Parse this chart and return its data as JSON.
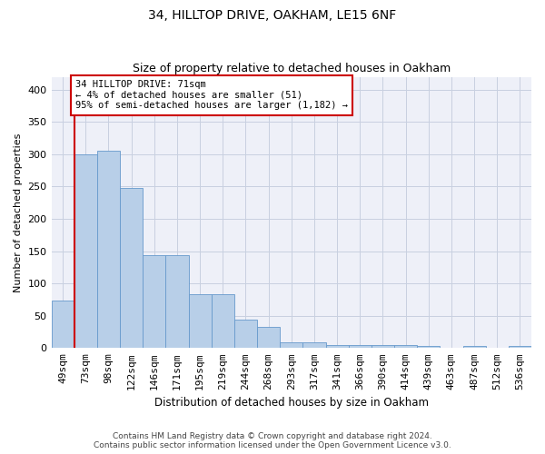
{
  "title1": "34, HILLTOP DRIVE, OAKHAM, LE15 6NF",
  "title2": "Size of property relative to detached houses in Oakham",
  "xlabel": "Distribution of detached houses by size in Oakham",
  "ylabel": "Number of detached properties",
  "categories": [
    "49sqm",
    "73sqm",
    "98sqm",
    "122sqm",
    "146sqm",
    "171sqm",
    "195sqm",
    "219sqm",
    "244sqm",
    "268sqm",
    "293sqm",
    "317sqm",
    "341sqm",
    "366sqm",
    "390sqm",
    "414sqm",
    "439sqm",
    "463sqm",
    "487sqm",
    "512sqm",
    "536sqm"
  ],
  "values": [
    73,
    300,
    305,
    248,
    144,
    144,
    83,
    83,
    44,
    33,
    9,
    9,
    5,
    5,
    5,
    5,
    3,
    0,
    3,
    0,
    3
  ],
  "bar_color": "#b8cfe8",
  "bar_edgecolor": "#6699cc",
  "highlight_color": "#cc0000",
  "annotation_text": "34 HILLTOP DRIVE: 71sqm\n← 4% of detached houses are smaller (51)\n95% of semi-detached houses are larger (1,182) →",
  "annotation_box_color": "#ffffff",
  "annotation_box_edgecolor": "#cc0000",
  "ylim": [
    0,
    420
  ],
  "yticks": [
    0,
    50,
    100,
    150,
    200,
    250,
    300,
    350,
    400
  ],
  "footer": "Contains HM Land Registry data © Crown copyright and database right 2024.\nContains public sector information licensed under the Open Government Licence v3.0.",
  "grid_color": "#c8d0e0",
  "bg_color": "#eef0f8"
}
